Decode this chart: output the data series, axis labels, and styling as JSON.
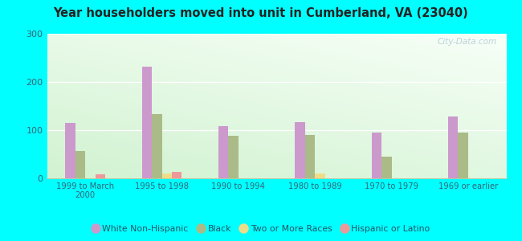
{
  "title": "Year householders moved into unit in Cumberland, VA (23040)",
  "categories": [
    "1999 to March\n2000",
    "1995 to 1998",
    "1990 to 1994",
    "1980 to 1989",
    "1970 to 1979",
    "1969 or earlier"
  ],
  "series": {
    "White Non-Hispanic": [
      115,
      232,
      108,
      117,
      95,
      128
    ],
    "Black": [
      57,
      133,
      88,
      90,
      45,
      95
    ],
    "Two or More Races": [
      0,
      10,
      0,
      10,
      0,
      0
    ],
    "Hispanic or Latino": [
      8,
      13,
      0,
      0,
      0,
      0
    ]
  },
  "colors": {
    "White Non-Hispanic": "#cc99cc",
    "Black": "#aabb88",
    "Two or More Races": "#eedd88",
    "Hispanic or Latino": "#ee9999"
  },
  "ylim": [
    0,
    300
  ],
  "yticks": [
    0,
    100,
    200,
    300
  ],
  "background_color": "#00ffff",
  "watermark": "City-Data.com",
  "legend_labels": [
    "White Non-Hispanic",
    "Black",
    "Two or More Races",
    "Hispanic or Latino"
  ]
}
